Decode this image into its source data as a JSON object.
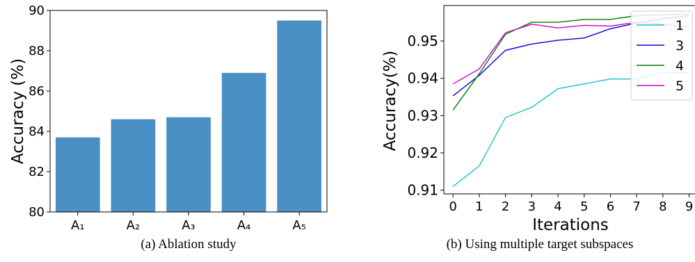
{
  "chart_data": [
    {
      "type": "bar",
      "ylabel": "Accuracy (%)",
      "ylim": [
        80,
        90
      ],
      "yticks": [
        80,
        82,
        84,
        86,
        88,
        90
      ],
      "categories": [
        "A₁",
        "A₂",
        "A₃",
        "A₄",
        "A₅"
      ],
      "values": [
        83.7,
        84.6,
        84.7,
        86.9,
        89.5
      ],
      "color": "#4a90c4",
      "caption": "(a) Ablation study"
    },
    {
      "type": "line",
      "xlabel": "Iterations",
      "ylabel": "Accuracy(%)",
      "ylim": [
        0.909,
        0.9595
      ],
      "xlim": [
        -0.35,
        9.25
      ],
      "xticks": [
        0,
        1,
        2,
        3,
        4,
        5,
        6,
        7,
        8,
        9
      ],
      "yticks": [
        0.91,
        0.92,
        0.93,
        0.94,
        0.95
      ],
      "x": [
        0,
        1,
        2,
        3,
        4,
        5,
        6,
        7,
        8,
        9
      ],
      "legend_position": "top-right",
      "series": [
        {
          "name": "1",
          "color": "#17becf",
          "values": [
            0.911,
            0.9165,
            0.9295,
            0.9322,
            0.9372,
            0.9385,
            0.9398,
            0.9398,
            0.9415,
            0.9415
          ]
        },
        {
          "name": "3",
          "color": "#0000dd",
          "values": [
            0.9353,
            0.9408,
            0.9475,
            0.9492,
            0.9502,
            0.9508,
            0.9533,
            0.9548,
            0.956,
            0.9568
          ]
        },
        {
          "name": "4",
          "color": "#007a00",
          "values": [
            0.9315,
            0.9412,
            0.9518,
            0.955,
            0.955,
            0.9558,
            0.9558,
            0.9568,
            0.957,
            0.9572
          ]
        },
        {
          "name": "5",
          "color": "#cc00cc",
          "values": [
            0.9385,
            0.9425,
            0.9522,
            0.9545,
            0.9535,
            0.9542,
            0.954,
            0.955,
            0.9545,
            0.9537
          ]
        }
      ],
      "caption": "(b) Using multiple target subspaces"
    }
  ]
}
